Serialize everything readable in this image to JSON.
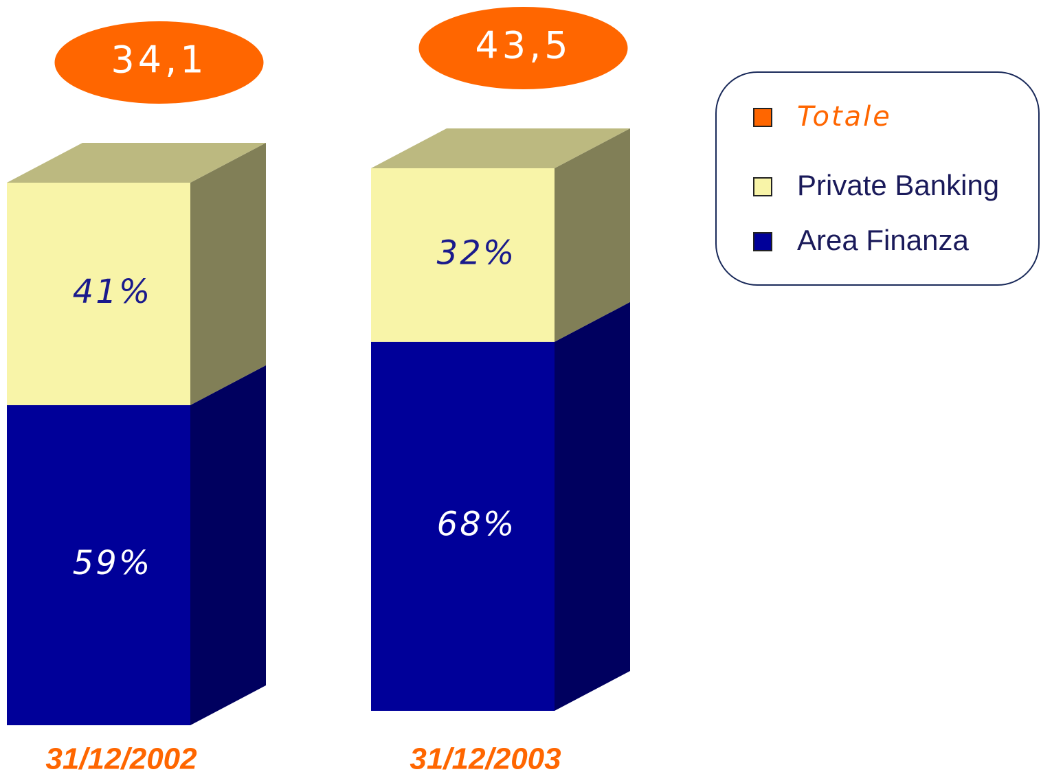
{
  "chart_data": {
    "type": "bar",
    "stacked": true,
    "categories": [
      "31/12/2002",
      "31/12/2003"
    ],
    "series": [
      {
        "name": "Area Finanza",
        "color": "#000099",
        "values": [
          59,
          68
        ],
        "value_labels": [
          "59%",
          "68%"
        ]
      },
      {
        "name": "Private Banking",
        "color": "#f8f4a8",
        "values": [
          41,
          32
        ],
        "value_labels": [
          "41%",
          "32%"
        ]
      }
    ],
    "totals": {
      "name": "Totale",
      "color": "#ff6600",
      "values": [
        34.1,
        43.5
      ],
      "value_labels": [
        "34,1",
        "43,5"
      ]
    }
  }
}
